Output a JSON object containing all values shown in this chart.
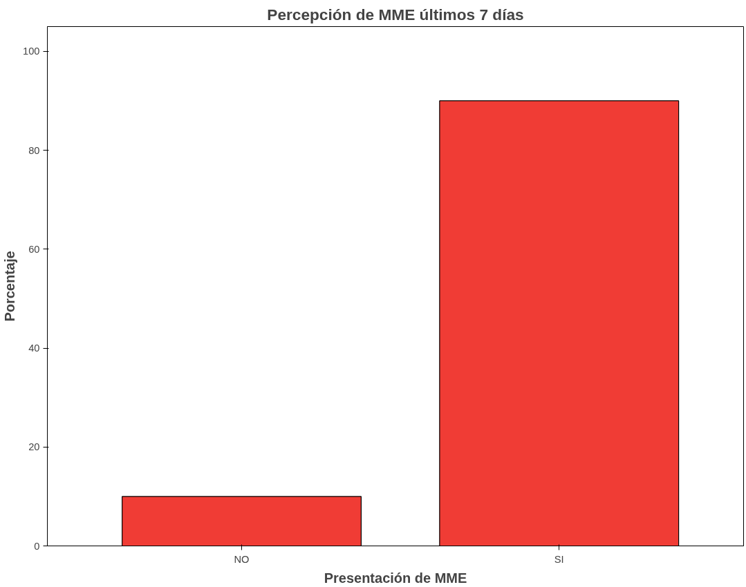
{
  "chart_data": {
    "type": "bar",
    "title": "Percepción de MME últimos 7 días",
    "xlabel": "Presentación de MME",
    "ylabel": "Porcentaje",
    "categories": [
      "NO",
      "SI"
    ],
    "values": [
      10,
      90
    ],
    "color": "#f03c35",
    "ylim": [
      0,
      105
    ],
    "yticks": [
      0,
      20,
      40,
      60,
      80,
      100
    ],
    "grid": false
  }
}
